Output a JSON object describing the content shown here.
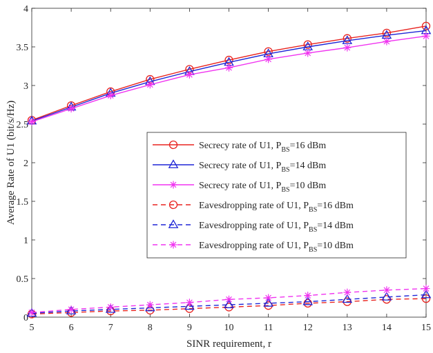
{
  "chart_data": {
    "type": "line",
    "xlabel": "SINR requirement, r",
    "ylabel": "Average Rate of U1 (bit/s/Hz)",
    "xlim": [
      5,
      15
    ],
    "ylim": [
      0,
      4
    ],
    "x_ticks": [
      5,
      6,
      7,
      8,
      9,
      10,
      11,
      12,
      13,
      14,
      15
    ],
    "y_ticks": [
      0,
      0.5,
      1,
      1.5,
      2,
      2.5,
      3,
      3.5,
      4
    ],
    "y_tick_labels": [
      "0",
      "0.5",
      "1",
      "1.5",
      "2",
      "2.5",
      "3",
      "3.5",
      "4"
    ],
    "grid": false,
    "legend_position": "center-right",
    "x": [
      5,
      6,
      7,
      8,
      9,
      10,
      11,
      12,
      13,
      14,
      15
    ],
    "series": [
      {
        "legend_main": "Secrecy rate of U1, P",
        "legend_sub": "BS",
        "legend_tail": "=16 dBm",
        "color": "#e8221e",
        "line": "solid",
        "marker": "circle",
        "values": [
          2.55,
          2.74,
          2.92,
          3.08,
          3.21,
          3.33,
          3.44,
          3.53,
          3.61,
          3.68,
          3.77
        ]
      },
      {
        "legend_main": "Secrecy rate of U1, P",
        "legend_sub": "BS",
        "legend_tail": "=14 dBm",
        "color": "#1d24d6",
        "line": "solid",
        "marker": "triangle",
        "values": [
          2.54,
          2.72,
          2.9,
          3.05,
          3.18,
          3.3,
          3.41,
          3.5,
          3.58,
          3.65,
          3.71
        ]
      },
      {
        "legend_main": "Secrecy rate of U1, P",
        "legend_sub": "BS",
        "legend_tail": "=10 dBm",
        "color": "#f032f0",
        "line": "solid",
        "marker": "asterisk",
        "values": [
          2.53,
          2.7,
          2.87,
          3.01,
          3.14,
          3.23,
          3.34,
          3.42,
          3.49,
          3.57,
          3.64
        ]
      },
      {
        "legend_main": "Eavesdropping rate of U1, P",
        "legend_sub": "BS",
        "legend_tail": "=16 dBm",
        "color": "#e8221e",
        "line": "dashed",
        "marker": "circle",
        "values": [
          0.04,
          0.06,
          0.08,
          0.09,
          0.11,
          0.13,
          0.15,
          0.18,
          0.2,
          0.23,
          0.24
        ]
      },
      {
        "legend_main": "Eavesdropping rate of U1, P",
        "legend_sub": "BS",
        "legend_tail": "=14 dBm",
        "color": "#1d24d6",
        "line": "dashed",
        "marker": "triangle",
        "values": [
          0.05,
          0.08,
          0.1,
          0.12,
          0.14,
          0.16,
          0.18,
          0.2,
          0.23,
          0.26,
          0.29
        ]
      },
      {
        "legend_main": "Eavesdropping rate of U1, P",
        "legend_sub": "BS",
        "legend_tail": "=10 dBm",
        "color": "#f032f0",
        "line": "dashed",
        "marker": "asterisk",
        "values": [
          0.06,
          0.1,
          0.13,
          0.16,
          0.19,
          0.23,
          0.25,
          0.28,
          0.32,
          0.35,
          0.37
        ]
      }
    ]
  }
}
